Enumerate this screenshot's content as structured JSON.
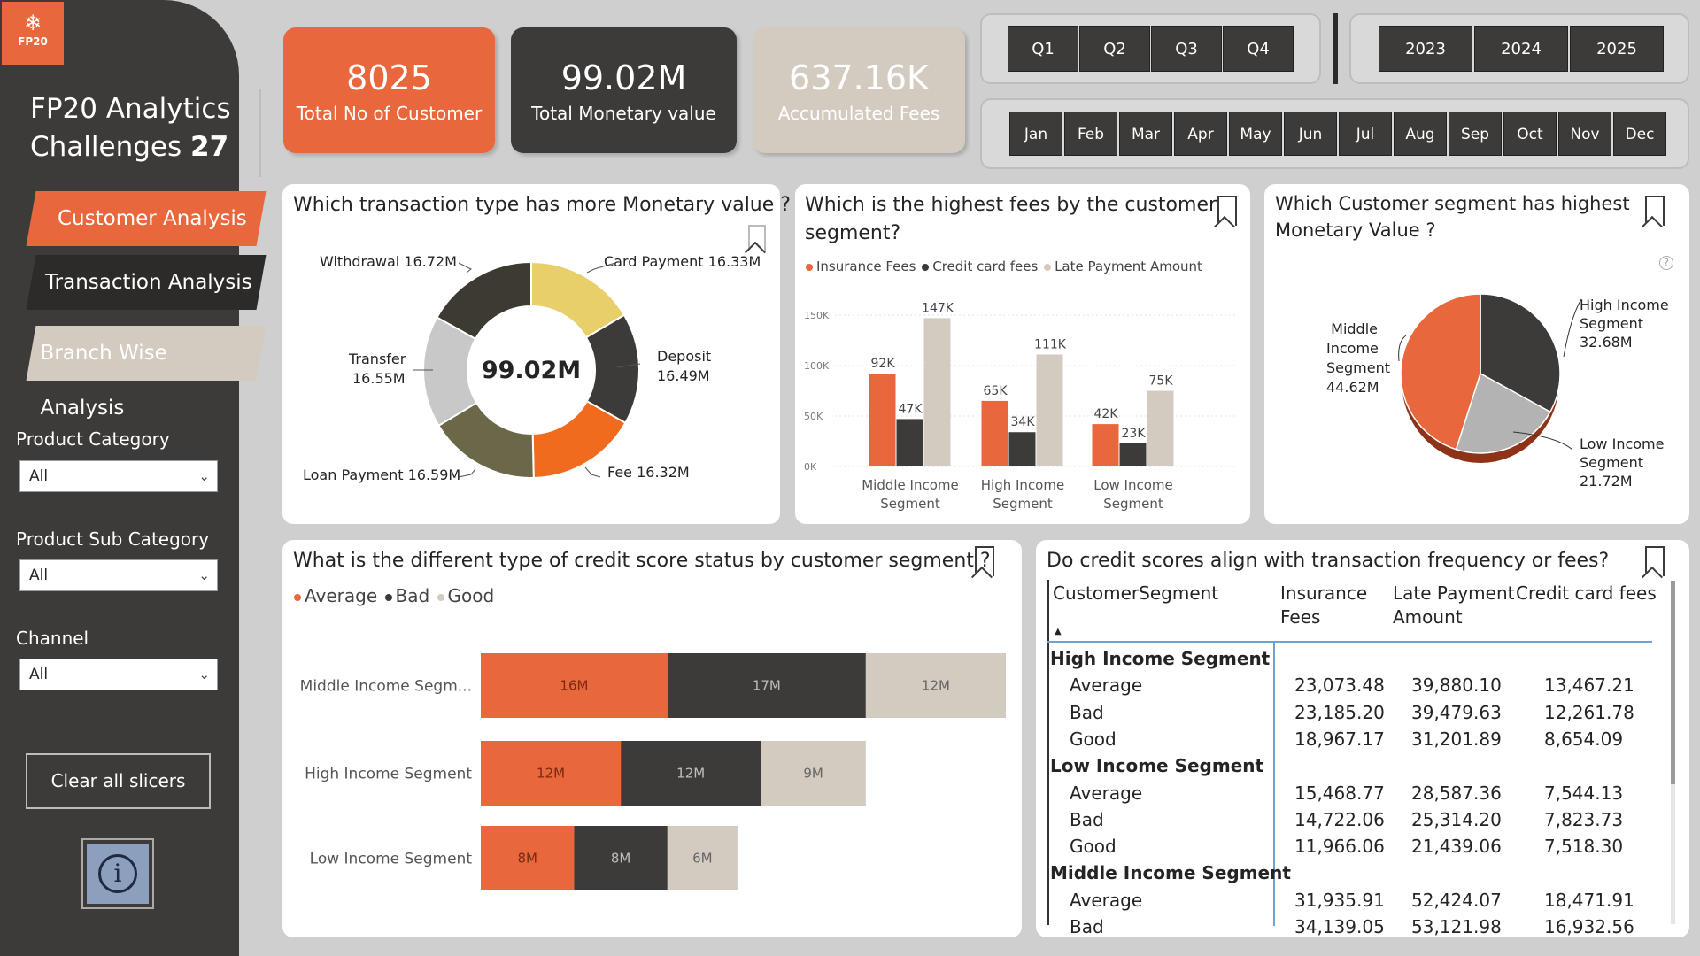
{
  "app": {
    "logo_text": "FP20",
    "title_line1": "FP20 Analytics",
    "title_line2": "Challenges",
    "title_number": "27"
  },
  "nav": {
    "customer": "Customer Analysis",
    "transaction": "Transaction Analysis",
    "branch": "Branch Wise Analysis"
  },
  "slicers": {
    "product_category": {
      "label": "Product Category",
      "value": "All"
    },
    "product_sub_category": {
      "label": "Product Sub Category",
      "value": "All"
    },
    "channel": {
      "label": "Channel",
      "value": "All"
    },
    "clear_label": "Clear all slicers"
  },
  "kpis": {
    "customers": {
      "value": "8025",
      "label": "Total No of Customer"
    },
    "monetary": {
      "value": "99.02M",
      "label": "Total Monetary value"
    },
    "fees": {
      "value": "637.16K",
      "label": "Accumulated Fees"
    }
  },
  "quarters": [
    "Q1",
    "Q2",
    "Q3",
    "Q4"
  ],
  "years": [
    "2023",
    "2024",
    "2025"
  ],
  "months": [
    "Jan",
    "Feb",
    "Mar",
    "Apr",
    "May",
    "Jun",
    "Jul",
    "Aug",
    "Sep",
    "Oct",
    "Nov",
    "Dec"
  ],
  "colors": {
    "orange": "#e8673c",
    "dark": "#3d3b39",
    "beige": "#d4cbc0",
    "yellow": "#e8cf6a",
    "grey": "#c8c8c8",
    "olive": "#6b6849",
    "fee_orange": "#f06b1e",
    "withdrawal": "#3d3a31"
  },
  "donut": {
    "title": "Which transaction type has more Monetary value ?",
    "center": "99.02M",
    "labels": {
      "withdrawal": "Withdrawal 16.72M",
      "card": "Card Payment 16.33M",
      "deposit_name": "Deposit",
      "deposit_value": "16.49M",
      "transfer_name": "Transfer",
      "transfer_value": "16.55M",
      "loan": "Loan Payment 16.59M",
      "fee": "Fee 16.32M"
    }
  },
  "fees_chart": {
    "title_line1": "Which is the highest fees by the customer",
    "title_line2": "segment?",
    "legend": [
      "Insurance Fees",
      "Credit card fees",
      "Late Payment Amount"
    ]
  },
  "segment_pie": {
    "title_line1": "Which Customer segment has highest",
    "title_line2": "Monetary Value ?",
    "help": "?",
    "middle": [
      "Middle",
      "Income",
      "Segment",
      "44.62M"
    ],
    "high": [
      "High Income",
      "Segment",
      "32.68M"
    ],
    "low": [
      "Low Income",
      "Segment",
      "21.72M"
    ]
  },
  "credit_chart": {
    "title": "What is the different type of credit score status by customer segment ?",
    "legend": [
      "Average",
      "Bad",
      "Good"
    ]
  },
  "table": {
    "title": "Do credit scores align with transaction frequency or fees?",
    "headers": {
      "segment": "CustomerSegment",
      "insurance_1": "Insurance",
      "insurance_2": "Fees",
      "late_1": "Late Payment",
      "late_2": "Amount",
      "credit": "Credit card fees"
    },
    "rows": [
      {
        "type": "group",
        "name": "High Income Segment",
        "v1": "",
        "v2": "",
        "v3": ""
      },
      {
        "type": "sub",
        "name": "Average",
        "v1": "23,073.48",
        "v2": "39,880.10",
        "v3": "13,467.21"
      },
      {
        "type": "sub",
        "name": "Bad",
        "v1": "23,185.20",
        "v2": "39,479.63",
        "v3": "12,261.78"
      },
      {
        "type": "sub",
        "name": "Good",
        "v1": "18,967.17",
        "v2": "31,201.89",
        "v3": "8,654.09"
      },
      {
        "type": "group",
        "name": "Low Income Segment",
        "v1": "",
        "v2": "",
        "v3": ""
      },
      {
        "type": "sub",
        "name": "Average",
        "v1": "15,468.77",
        "v2": "28,587.36",
        "v3": "7,544.13"
      },
      {
        "type": "sub",
        "name": "Bad",
        "v1": "14,722.06",
        "v2": "25,314.20",
        "v3": "7,823.73"
      },
      {
        "type": "sub",
        "name": "Good",
        "v1": "11,966.06",
        "v2": "21,439.06",
        "v3": "7,518.30"
      },
      {
        "type": "group",
        "name": "Middle Income Segment",
        "v1": "",
        "v2": "",
        "v3": ""
      },
      {
        "type": "sub",
        "name": "Average",
        "v1": "31,935.91",
        "v2": "52,424.07",
        "v3": "18,471.91"
      },
      {
        "type": "sub",
        "name": "Bad",
        "v1": "34,139.05",
        "v2": "53,121.98",
        "v3": "16,932.56"
      }
    ]
  },
  "chart_data": [
    {
      "type": "pie",
      "title": "Which transaction type has more Monetary value ?",
      "center_label": "99.02M",
      "categories": [
        "Card Payment",
        "Deposit",
        "Fee",
        "Loan Payment",
        "Transfer",
        "Withdrawal"
      ],
      "values": [
        16.33,
        16.49,
        16.32,
        16.59,
        16.55,
        16.72
      ],
      "unit": "M"
    },
    {
      "type": "bar",
      "title": "Which is the highest fees by the customer segment?",
      "categories": [
        "Middle Income Segment",
        "High Income Segment",
        "Low Income Segment"
      ],
      "category_lines": [
        [
          "Middle Income",
          "Segment"
        ],
        [
          "High Income",
          "Segment"
        ],
        [
          "Low Income",
          "Segment"
        ]
      ],
      "series": [
        {
          "name": "Insurance Fees",
          "values": [
            92,
            65,
            42
          ],
          "labels": [
            "92K",
            "65K",
            "42K"
          ]
        },
        {
          "name": "Credit card fees",
          "values": [
            47,
            34,
            23
          ],
          "labels": [
            "47K",
            "34K",
            "23K"
          ]
        },
        {
          "name": "Late Payment Amount",
          "values": [
            147,
            111,
            75
          ],
          "labels": [
            "147K",
            "111K",
            "75K"
          ]
        }
      ],
      "ylim": [
        0,
        150
      ],
      "yticks": [
        0,
        50,
        100,
        150
      ],
      "ytick_labels": [
        "0K",
        "50K",
        "100K",
        "150K"
      ],
      "unit": "K"
    },
    {
      "type": "pie",
      "title": "Which Customer segment has highest Monetary Value ?",
      "categories": [
        "Middle Income Segment",
        "High Income Segment",
        "Low Income Segment"
      ],
      "values": [
        44.62,
        32.68,
        21.72
      ],
      "unit": "M"
    },
    {
      "type": "bar",
      "orientation": "horizontal",
      "stacked": true,
      "title": "What is the different type of credit score status by customer segment ?",
      "categories": [
        "Middle Income Segm...",
        "High Income Segment",
        "Low Income Segment"
      ],
      "series": [
        {
          "name": "Average",
          "values": [
            16,
            12,
            8
          ],
          "labels": [
            "16M",
            "12M",
            "8M"
          ]
        },
        {
          "name": "Bad",
          "values": [
            17,
            12,
            8
          ],
          "labels": [
            "17M",
            "12M",
            "8M"
          ]
        },
        {
          "name": "Good",
          "values": [
            12,
            9,
            6
          ],
          "labels": [
            "12M",
            "9M",
            "6M"
          ]
        }
      ],
      "xlim": [
        0,
        45
      ],
      "unit": "M"
    }
  ]
}
